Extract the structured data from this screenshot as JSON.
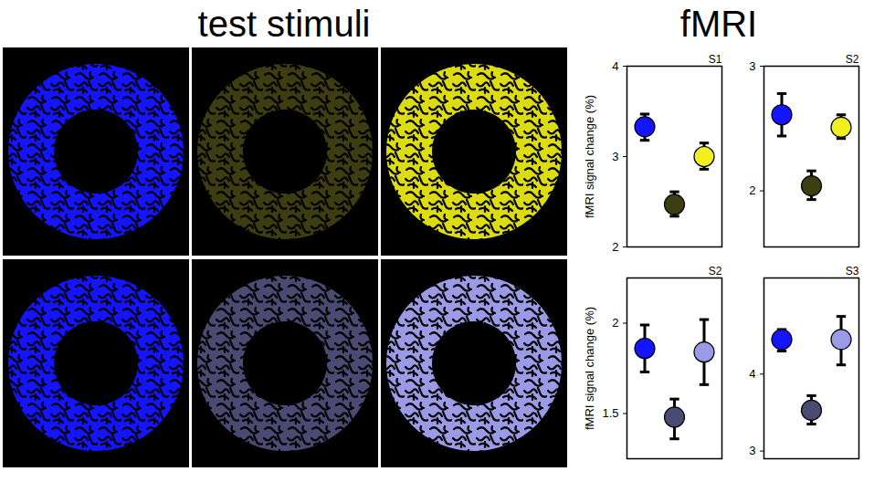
{
  "headings": [
    "test stimuli",
    "fMRI"
  ],
  "stimuli": [
    [
      {
        "color": "#1414ff"
      },
      {
        "color": "#3d3d12"
      },
      {
        "color": "#dcdc10"
      }
    ],
    [
      {
        "color": "#1414ff"
      },
      {
        "color": "#4a4a72"
      },
      {
        "color": "#9a9ae6"
      }
    ]
  ],
  "chart_data": [
    {
      "type": "scatter",
      "title": "S1",
      "y_label": "fMRI signal change (%)",
      "categories": [
        null,
        null,
        null
      ],
      "values": [
        3.33,
        2.47,
        3.0
      ],
      "error_low": [
        3.18,
        2.34,
        2.86
      ],
      "error_high": [
        3.47,
        2.61,
        3.15
      ],
      "colors": [
        "#1414ff",
        "#3d3d12",
        "#f0f020"
      ],
      "marker": "circle",
      "ylim": [
        2,
        4
      ],
      "yticks": [
        2,
        3,
        4
      ],
      "tick_labels": "y"
    },
    {
      "type": "scatter",
      "title": "S2",
      "categories": [
        null,
        null,
        null
      ],
      "values": [
        2.61,
        2.04,
        2.51
      ],
      "error_low": [
        2.44,
        1.93,
        2.42
      ],
      "error_high": [
        2.78,
        2.16,
        2.61
      ],
      "colors": [
        "#1414ff",
        "#3d3d12",
        "#f0f020"
      ],
      "marker": "circle",
      "ylim": [
        1.55,
        3
      ],
      "yticks": [
        2,
        3
      ],
      "tick_labels": "y"
    },
    {
      "type": "scatter",
      "title": "S2",
      "y_label": "fMRI signal change (%)",
      "categories": [
        null,
        null,
        null
      ],
      "values": [
        1.86,
        1.48,
        1.84
      ],
      "error_low": [
        1.73,
        1.36,
        1.66
      ],
      "error_high": [
        1.99,
        1.58,
        2.02
      ],
      "colors": [
        "#1414ff",
        "#4a4a72",
        "#9a9ae6"
      ],
      "marker": "circle",
      "ylim": [
        1.25,
        2.25
      ],
      "yticks": [
        1.5,
        2
      ],
      "tick_labels": "y"
    },
    {
      "type": "scatter",
      "title": "S3",
      "categories": [
        null,
        null,
        null
      ],
      "values": [
        4.45,
        3.53,
        4.45
      ],
      "error_low": [
        4.3,
        3.35,
        4.12
      ],
      "error_high": [
        4.58,
        3.72,
        4.75
      ],
      "colors": [
        "#1414ff",
        "#4a4a72",
        "#9a9ae6"
      ],
      "marker": "circle",
      "ylim": [
        2.9,
        5.25
      ],
      "yticks": [
        3,
        4
      ],
      "tick_labels": "y"
    }
  ]
}
